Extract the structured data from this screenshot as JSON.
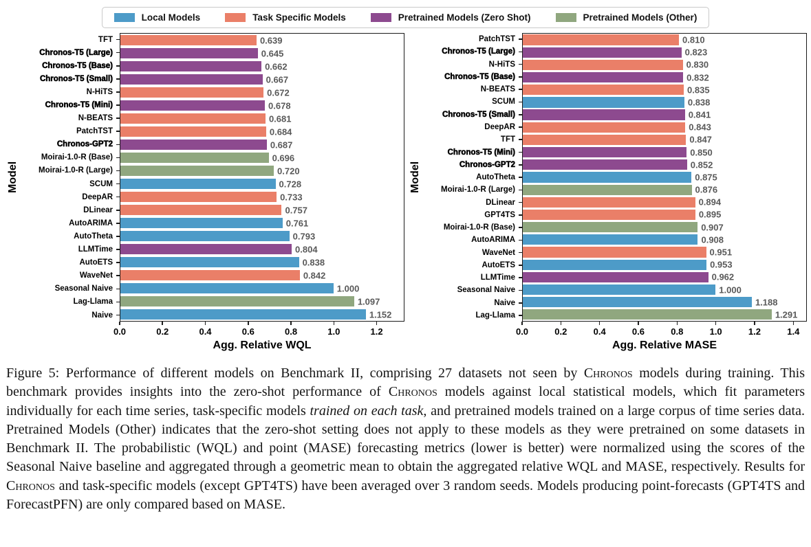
{
  "legend": {
    "position": "top-center",
    "items": [
      {
        "label": "Local Models",
        "category": "local"
      },
      {
        "label": "Task Specific Models",
        "category": "task_specific"
      },
      {
        "label": "Pretrained Models (Zero Shot)",
        "category": "zero_shot"
      },
      {
        "label": "Pretrained Models (Other)",
        "category": "other"
      }
    ]
  },
  "colors": {
    "local": "#4d9bc8",
    "task_specific": "#ea7f68",
    "zero_shot": "#8d4a8f",
    "other": "#90a77f",
    "value_label": "#595959",
    "axis": "#1a1a1a",
    "legend_border": "#c9c9c9"
  },
  "chart_data": [
    {
      "type": "bar",
      "orientation": "horizontal",
      "xlabel": "Agg. Relative WQL",
      "ylabel": "Model",
      "xlim": [
        0,
        1.33
      ],
      "xticks": [
        0.0,
        0.2,
        0.4,
        0.6,
        0.8,
        1.0,
        1.2
      ],
      "grid": false,
      "bars": [
        {
          "label": "TFT",
          "value": 0.639,
          "category": "task_specific",
          "bold": false
        },
        {
          "label": "Chronos-T5 (Large)",
          "value": 0.645,
          "category": "zero_shot",
          "bold": true
        },
        {
          "label": "Chronos-T5 (Base)",
          "value": 0.662,
          "category": "zero_shot",
          "bold": true
        },
        {
          "label": "Chronos-T5 (Small)",
          "value": 0.667,
          "category": "zero_shot",
          "bold": true
        },
        {
          "label": "N-HiTS",
          "value": 0.672,
          "category": "task_specific",
          "bold": false
        },
        {
          "label": "Chronos-T5 (Mini)",
          "value": 0.678,
          "category": "zero_shot",
          "bold": true
        },
        {
          "label": "N-BEATS",
          "value": 0.681,
          "category": "task_specific",
          "bold": false
        },
        {
          "label": "PatchTST",
          "value": 0.684,
          "category": "task_specific",
          "bold": false
        },
        {
          "label": "Chronos-GPT2",
          "value": 0.687,
          "category": "zero_shot",
          "bold": true
        },
        {
          "label": "Moirai-1.0-R (Base)",
          "value": 0.696,
          "category": "other",
          "bold": false
        },
        {
          "label": "Moirai-1.0-R (Large)",
          "value": 0.72,
          "category": "other",
          "bold": false
        },
        {
          "label": "SCUM",
          "value": 0.728,
          "category": "local",
          "bold": false
        },
        {
          "label": "DeepAR",
          "value": 0.733,
          "category": "task_specific",
          "bold": false
        },
        {
          "label": "DLinear",
          "value": 0.757,
          "category": "task_specific",
          "bold": false
        },
        {
          "label": "AutoARIMA",
          "value": 0.761,
          "category": "local",
          "bold": false
        },
        {
          "label": "AutoTheta",
          "value": 0.793,
          "category": "local",
          "bold": false
        },
        {
          "label": "LLMTime",
          "value": 0.804,
          "category": "zero_shot",
          "bold": false
        },
        {
          "label": "AutoETS",
          "value": 0.838,
          "category": "local",
          "bold": false
        },
        {
          "label": "WaveNet",
          "value": 0.842,
          "category": "task_specific",
          "bold": false
        },
        {
          "label": "Seasonal Naive",
          "value": 1.0,
          "category": "local",
          "bold": false
        },
        {
          "label": "Lag-Llama",
          "value": 1.097,
          "category": "other",
          "bold": false
        },
        {
          "label": "Naive",
          "value": 1.152,
          "category": "local",
          "bold": false
        }
      ]
    },
    {
      "type": "bar",
      "orientation": "horizontal",
      "xlabel": "Agg. Relative MASE",
      "ylabel": "Model",
      "xlim": [
        0,
        1.47
      ],
      "xticks": [
        0.0,
        0.2,
        0.4,
        0.6,
        0.8,
        1.0,
        1.2,
        1.4
      ],
      "grid": false,
      "bars": [
        {
          "label": "PatchTST",
          "value": 0.81,
          "category": "task_specific",
          "bold": false
        },
        {
          "label": "Chronos-T5 (Large)",
          "value": 0.823,
          "category": "zero_shot",
          "bold": true
        },
        {
          "label": "N-HiTS",
          "value": 0.83,
          "category": "task_specific",
          "bold": false
        },
        {
          "label": "Chronos-T5 (Base)",
          "value": 0.832,
          "category": "zero_shot",
          "bold": true
        },
        {
          "label": "N-BEATS",
          "value": 0.835,
          "category": "task_specific",
          "bold": false
        },
        {
          "label": "SCUM",
          "value": 0.838,
          "category": "local",
          "bold": false
        },
        {
          "label": "Chronos-T5 (Small)",
          "value": 0.841,
          "category": "zero_shot",
          "bold": true
        },
        {
          "label": "DeepAR",
          "value": 0.843,
          "category": "task_specific",
          "bold": false
        },
        {
          "label": "TFT",
          "value": 0.847,
          "category": "task_specific",
          "bold": false
        },
        {
          "label": "Chronos-T5 (Mini)",
          "value": 0.85,
          "category": "zero_shot",
          "bold": true
        },
        {
          "label": "Chronos-GPT2",
          "value": 0.852,
          "category": "zero_shot",
          "bold": true
        },
        {
          "label": "AutoTheta",
          "value": 0.875,
          "category": "local",
          "bold": false
        },
        {
          "label": "Moirai-1.0-R (Large)",
          "value": 0.876,
          "category": "other",
          "bold": false
        },
        {
          "label": "DLinear",
          "value": 0.894,
          "category": "task_specific",
          "bold": false
        },
        {
          "label": "GPT4TS",
          "value": 0.895,
          "category": "task_specific",
          "bold": false
        },
        {
          "label": "Moirai-1.0-R (Base)",
          "value": 0.907,
          "category": "other",
          "bold": false
        },
        {
          "label": "AutoARIMA",
          "value": 0.908,
          "category": "local",
          "bold": false
        },
        {
          "label": "WaveNet",
          "value": 0.951,
          "category": "task_specific",
          "bold": false
        },
        {
          "label": "AutoETS",
          "value": 0.953,
          "category": "local",
          "bold": false
        },
        {
          "label": "LLMTime",
          "value": 0.962,
          "category": "zero_shot",
          "bold": false
        },
        {
          "label": "Seasonal Naive",
          "value": 1.0,
          "category": "local",
          "bold": false
        },
        {
          "label": "Naive",
          "value": 1.188,
          "category": "local",
          "bold": false
        },
        {
          "label": "Lag-Llama",
          "value": 1.291,
          "category": "other",
          "bold": false
        }
      ]
    }
  ],
  "caption": {
    "segments": [
      {
        "text": "Figure 5: Performance of different models on Benchmark II, comprising 27 datasets not seen by ",
        "style": "normal"
      },
      {
        "text": "Chronos",
        "style": "smallcaps"
      },
      {
        "text": " models during training. This benchmark provides insights into the zero-shot performance of ",
        "style": "normal"
      },
      {
        "text": "Chronos",
        "style": "smallcaps"
      },
      {
        "text": " models against local statistical models, which fit parameters individually for each time series, task-specific models ",
        "style": "normal"
      },
      {
        "text": "trained on each task",
        "style": "italic"
      },
      {
        "text": ", and pretrained models trained on a large corpus of time series data. Pretrained Models (Other) indicates that the zero-shot setting does not apply to these models as they were pretrained on some datasets in Benchmark II. The probabilistic (WQL) and point (MASE) forecasting metrics (lower is better) were normalized using the scores of the Seasonal Naive baseline and aggregated through a geometric mean to obtain the aggregated relative WQL and MASE, respectively. Results for ",
        "style": "normal"
      },
      {
        "text": "Chronos",
        "style": "smallcaps"
      },
      {
        "text": " and task-specific models (except GPT4TS) have been averaged over 3 random seeds. Models producing point-forecasts (GPT4TS and ForecastPFN) are only compared based on MASE.",
        "style": "normal"
      }
    ]
  }
}
